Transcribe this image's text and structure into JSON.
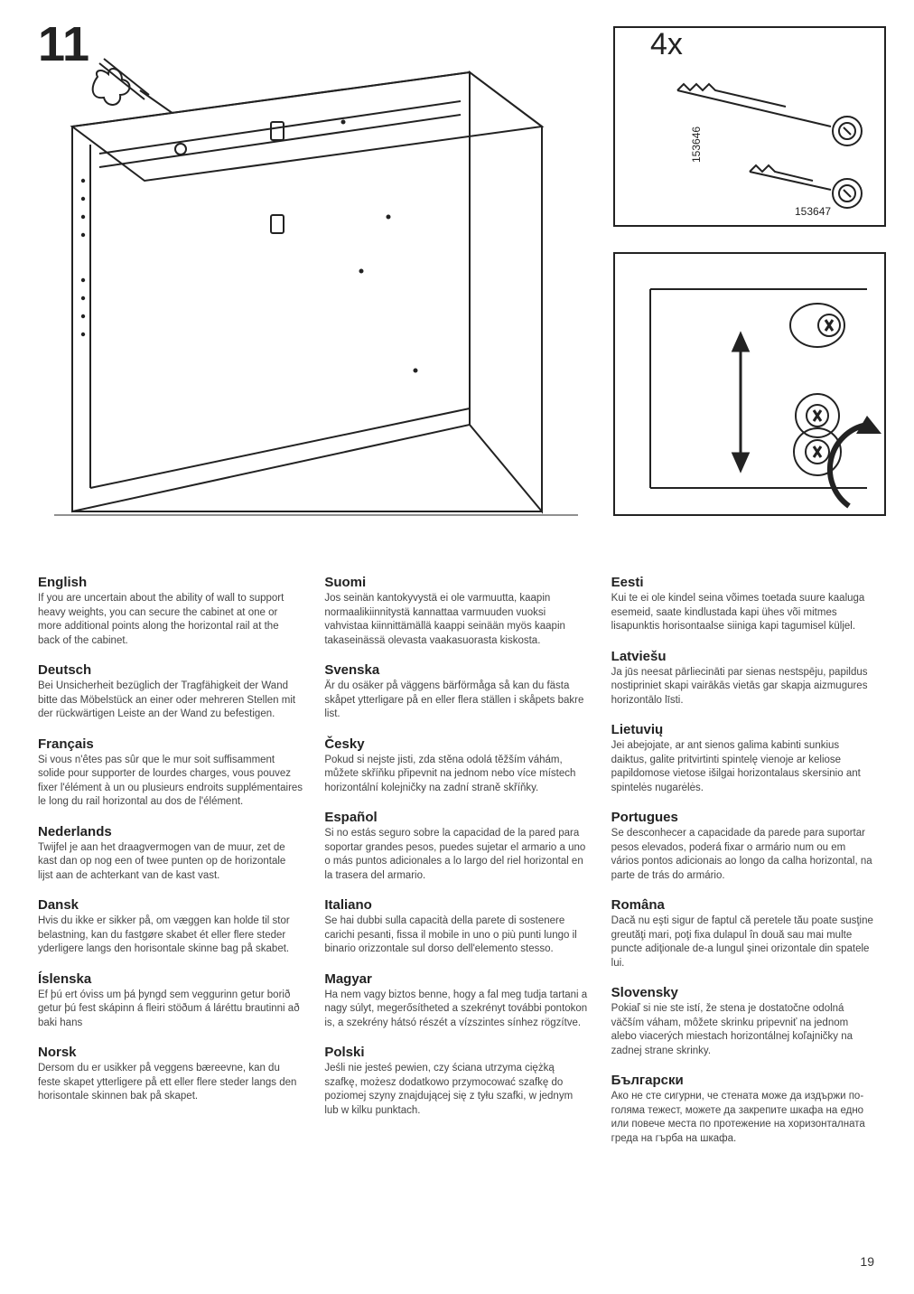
{
  "stepNumber": "11",
  "quantityLabel": "4x",
  "partNumbers": {
    "a": "153646",
    "b": "153647"
  },
  "pageNumber": "19",
  "columns": [
    [
      {
        "lang": "English",
        "text": "If you are uncertain about the ability of wall to support heavy weights, you can secure the cabinet at one or more additional points along the horizontal rail at the back of the cabinet."
      },
      {
        "lang": "Deutsch",
        "text": "Bei Unsicherheit bezüglich der Tragfähigkeit der Wand bitte das Möbelstück an einer oder mehreren Stellen mit der rückwärtigen Leiste an der Wand zu befestigen."
      },
      {
        "lang": "Français",
        "text": "Si vous n'êtes pas sûr que le mur soit suffisamment solide pour supporter de lourdes charges, vous pouvez fixer l'élément à un ou plusieurs endroits supplémentaires le long du rail horizontal au dos de l'élément."
      },
      {
        "lang": "Nederlands",
        "text": "Twijfel je aan het draagvermogen van de muur, zet de kast dan op nog een of twee punten op de horizontale lijst aan de achterkant van de kast vast."
      },
      {
        "lang": "Dansk",
        "text": "Hvis du ikke er sikker på, om væggen kan holde til stor belastning, kan du fastgøre skabet ét eller flere steder yderligere langs den horisontale skinne bag på skabet."
      },
      {
        "lang": "Íslenska",
        "text": "Ef þú ert óviss um þá þyngd sem veggurinn getur borið getur þú fest skápinn á fleiri stöðum á láréttu brautinni að baki hans"
      },
      {
        "lang": "Norsk",
        "text": "Dersom du er usikker på veggens bæreevne, kan du feste skapet ytterligere på ett eller flere steder langs den horisontale skinnen bak på skapet."
      }
    ],
    [
      {
        "lang": "Suomi",
        "text": "Jos seinän kantokyvystä ei ole varmuutta, kaapin normaalikiinnitystä kannattaa varmuuden vuoksi vahvistaa kiinnittämällä kaappi seinään myös kaapin takaseinässä olevasta vaakasuorasta kiskosta."
      },
      {
        "lang": "Svenska",
        "text": "Är du osäker på väggens bärförmåga så kan du fästa skåpet ytterligare på en eller flera ställen i skåpets bakre list."
      },
      {
        "lang": "Česky",
        "text": "Pokud si nejste jisti, zda stěna odolá těžším váhám, můžete skříňku připevnit na jednom nebo více místech horizontální kolejničky na zadní straně skříňky."
      },
      {
        "lang": "Español",
        "text": "Si no estás seguro sobre la capacidad de la pared para soportar grandes pesos, puedes sujetar el armario a uno o más puntos adicionales a lo largo del riel horizontal en la trasera del armario."
      },
      {
        "lang": "Italiano",
        "text": "Se hai dubbi sulla capacità della parete di sostenere carichi pesanti, fissa il mobile in uno o più punti lungo il binario orizzontale sul dorso dell'elemento stesso."
      },
      {
        "lang": "Magyar",
        "text": "Ha nem vagy biztos benne, hogy a fal meg tudja tartani a nagy súlyt, megerősítheted a szekrényt további pontokon is, a szekrény hátsó részét a vízszintes sínhez rögzítve."
      },
      {
        "lang": "Polski",
        "text": "Jeśli nie jesteś pewien, czy ściana utrzyma ciężką szafkę, możesz dodatkowo przymocować szafkę do poziomej szyny znajdującej się z tyłu szafki, w jednym lub w kilku punktach."
      }
    ],
    [
      {
        "lang": "Eesti",
        "text": "Kui te ei ole kindel seina võimes toetada suure kaaluga esemeid, saate kindlustada kapi ühes või mitmes lisapunktis horisontaalse siiniga kapi tagumisel küljel."
      },
      {
        "lang": "Latviešu",
        "text": "Ja jūs neesat pārliecināti par sienas nestspēju, papildus nostipriniet skapi vairākās vietās gar skapja aizmugures horizontālo līsti."
      },
      {
        "lang": "Lietuvių",
        "text": "Jei abejojate, ar ant sienos galima kabinti sunkius daiktus, galite pritvirtinti spintelę vienoje ar keliose papildomose vietose išilgai horizontalaus skersinio ant spintelės nugarėlės."
      },
      {
        "lang": "Portugues",
        "text": "Se desconhecer a capacidade da parede para suportar pesos elevados, poderá fixar o armário num ou em vários pontos adicionais ao longo da calha horizontal, na parte de trás do armário."
      },
      {
        "lang": "Româna",
        "text": "Dacă nu eşti sigur de faptul că peretele tău poate susţine greutăţi mari, poţi fixa dulapul în două sau mai multe puncte adiţionale de-a lungul şinei orizontale din spatele lui."
      },
      {
        "lang": "Slovensky",
        "text": "Pokiaľ si nie ste istí, že stena je dostatočne odolná väčším váham, môžete skrinku pripevniť na jednom alebo viacerých miestach horizontálnej koľajničky na zadnej strane skrinky."
      },
      {
        "lang": "Български",
        "text": "Ако не сте сигурни, че стената може да издържи по-голяма тежест, можете да закрепите шкафа на едно или повече места по протежение на хоризонталната греда на гърба на шкафа."
      }
    ]
  ]
}
